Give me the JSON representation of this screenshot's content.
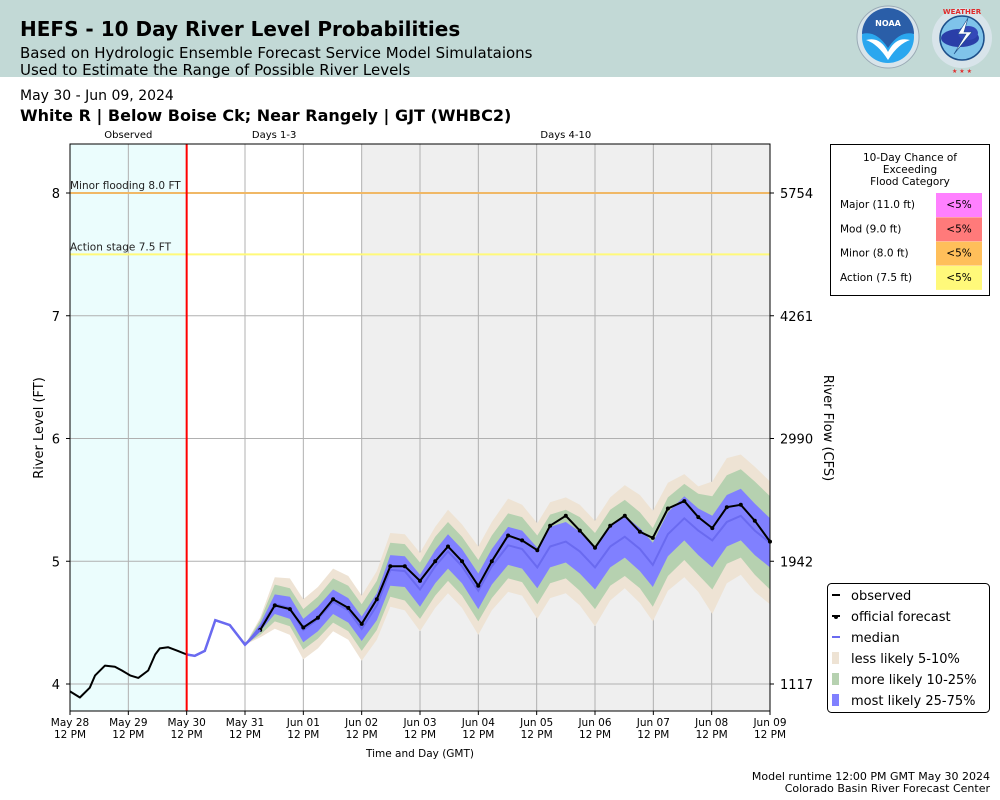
{
  "header": {
    "title": "HEFS - 10 Day River Level Probabilities",
    "subtitle1": "Based on Hydrologic Ensemble Forecast Service Model Simulataions",
    "subtitle2": "Used to Estimate the Range of Possible River Levels",
    "logos": [
      "NOAA",
      "NATIONAL WEATHER SERVICE"
    ]
  },
  "date_range": "May 30 - Jun 09, 2024",
  "station": "White R | Below Boise Ck; Near Rangely | GJT (WHBC2)",
  "footer": {
    "runtime": "Model runtime 12:00 PM GMT May 30 2024",
    "center": "Colorado Basin River Forecast Center"
  },
  "colors": {
    "observed_bg": "#ebfdfd",
    "days410_bg": "#efefef",
    "now_line": "#ff0000",
    "minor_line": "#f0b866",
    "action_line": "#fff97a",
    "less_likely": "#eee3d4",
    "more_likely": "#b6d1b0",
    "most_likely": "#8080ff",
    "median": "#6a6af0",
    "major": "#ff80ff",
    "mod": "#ff7a7a",
    "minor": "#ffbf5a",
    "action": "#fff97a"
  },
  "chart_data": {
    "type": "area",
    "xlabel": "Time and Day (GMT)",
    "ylabel": "River Level (FT)",
    "y2label": "River Flow (CFS)",
    "ylim": [
      3.8,
      8.4
    ],
    "xlim_days": [
      0,
      12
    ],
    "x_ticks": [
      {
        "day": 0,
        "l1": "May 28",
        "l2": "12 PM"
      },
      {
        "day": 1,
        "l1": "May 29",
        "l2": "12 PM"
      },
      {
        "day": 2,
        "l1": "May 30",
        "l2": "12 PM"
      },
      {
        "day": 3,
        "l1": "May 31",
        "l2": "12 PM"
      },
      {
        "day": 4,
        "l1": "Jun 01",
        "l2": "12 PM"
      },
      {
        "day": 5,
        "l1": "Jun 02",
        "l2": "12 PM"
      },
      {
        "day": 6,
        "l1": "Jun 03",
        "l2": "12 PM"
      },
      {
        "day": 7,
        "l1": "Jun 04",
        "l2": "12 PM"
      },
      {
        "day": 8,
        "l1": "Jun 05",
        "l2": "12 PM"
      },
      {
        "day": 9,
        "l1": "Jun 06",
        "l2": "12 PM"
      },
      {
        "day": 10,
        "l1": "Jun 07",
        "l2": "12 PM"
      },
      {
        "day": 11,
        "l1": "Jun 08",
        "l2": "12 PM"
      },
      {
        "day": 12,
        "l1": "Jun 09",
        "l2": "12 PM"
      }
    ],
    "y_ticks": [
      {
        "ft": 4,
        "label": "4",
        "cfs": "1117"
      },
      {
        "ft": 5,
        "label": "5",
        "cfs": "1942"
      },
      {
        "ft": 6,
        "label": "6",
        "cfs": "2990"
      },
      {
        "ft": 7,
        "label": "7",
        "cfs": "4261"
      },
      {
        "ft": 8,
        "label": "8",
        "cfs": "5754"
      }
    ],
    "periods": [
      {
        "label": "Observed",
        "start": 0,
        "end": 2
      },
      {
        "label": "Days 1-3",
        "start": 2,
        "end": 5
      },
      {
        "label": "Days 4-10",
        "start": 5,
        "end": 12
      }
    ],
    "forecast_start_day": 2,
    "thresholds": [
      {
        "label": "Minor flooding 8.0 FT",
        "value": 8.0,
        "color_key": "minor_line"
      },
      {
        "label": "Action stage 7.5 FT",
        "value": 7.5,
        "color_key": "action_line"
      }
    ],
    "observed": {
      "day": [
        0,
        0.17,
        0.34,
        0.43,
        0.6,
        0.77,
        0.89,
        1.03,
        1.17,
        1.34,
        1.46,
        1.54,
        1.68,
        1.85,
        2.0
      ],
      "ft": [
        3.94,
        3.89,
        3.97,
        4.07,
        4.15,
        4.14,
        4.11,
        4.07,
        4.05,
        4.11,
        4.24,
        4.29,
        4.3,
        4.27,
        4.24
      ]
    },
    "official_forecast": {
      "day": [
        2.0,
        2.14,
        2.31,
        2.49,
        2.74,
        3.0,
        3.26,
        3.51,
        3.77,
        4.0,
        4.25,
        4.51,
        4.77,
        5.0,
        5.26,
        5.49,
        5.74,
        6.0,
        6.26,
        6.48,
        6.72,
        7.0,
        7.23,
        7.51,
        7.75,
        8.01,
        8.23,
        8.5,
        8.74,
        9.0,
        9.26,
        9.51,
        9.77,
        9.99,
        10.25,
        10.53,
        10.77,
        11.01,
        11.26,
        11.5,
        11.74,
        12.0
      ],
      "ft": [
        4.24,
        4.23,
        4.27,
        4.52,
        4.48,
        4.32,
        4.44,
        4.64,
        4.61,
        4.46,
        4.54,
        4.69,
        4.62,
        4.49,
        4.69,
        4.96,
        4.96,
        4.84,
        5.0,
        5.12,
        5.0,
        4.8,
        5.0,
        5.21,
        5.17,
        5.09,
        5.29,
        5.37,
        5.25,
        5.11,
        5.29,
        5.37,
        5.24,
        5.19,
        5.43,
        5.49,
        5.36,
        5.27,
        5.44,
        5.46,
        5.33,
        5.16
      ]
    },
    "median": {
      "day": [
        2.0,
        2.14,
        2.31,
        2.49,
        2.74,
        3.0,
        3.26,
        3.51,
        3.77,
        4.0,
        4.25,
        4.51,
        4.77,
        5.0,
        5.26,
        5.49,
        5.74,
        6.0,
        6.26,
        6.48,
        6.72,
        7.0,
        7.23,
        7.51,
        7.75,
        8.01,
        8.23,
        8.5,
        8.74,
        9.0,
        9.26,
        9.51,
        9.77,
        9.99,
        10.25,
        10.53,
        10.77,
        11.01,
        11.26,
        11.5,
        11.74,
        12.0
      ],
      "ft": [
        4.24,
        4.23,
        4.27,
        4.52,
        4.48,
        4.32,
        4.46,
        4.65,
        4.62,
        4.44,
        4.53,
        4.67,
        4.6,
        4.45,
        4.64,
        4.93,
        4.92,
        4.77,
        4.96,
        5.08,
        4.96,
        4.76,
        4.96,
        5.13,
        5.1,
        4.95,
        5.12,
        5.16,
        5.08,
        4.95,
        5.12,
        5.2,
        5.1,
        4.97,
        5.22,
        5.35,
        5.25,
        5.17,
        5.32,
        5.37,
        5.25,
        5.15
      ]
    },
    "bands": [
      {
        "name": "less likely 5-10%",
        "lower_off": [
          0,
          0,
          0,
          0,
          0,
          0,
          0.08,
          0.2,
          0.22,
          0.24,
          0.24,
          0.24,
          0.24,
          0.26,
          0.28,
          0.3,
          0.32,
          0.34,
          0.34,
          0.34,
          0.34,
          0.36,
          0.36,
          0.38,
          0.38,
          0.42,
          0.42,
          0.42,
          0.44,
          0.48,
          0.44,
          0.42,
          0.44,
          0.46,
          0.46,
          0.48,
          0.5,
          0.6,
          0.5,
          0.48,
          0.5,
          0.5
        ],
        "upper_off": [
          0,
          0,
          0,
          0,
          0,
          0,
          0.08,
          0.22,
          0.24,
          0.25,
          0.26,
          0.27,
          0.28,
          0.27,
          0.28,
          0.3,
          0.3,
          0.3,
          0.32,
          0.34,
          0.34,
          0.36,
          0.36,
          0.38,
          0.36,
          0.36,
          0.36,
          0.36,
          0.38,
          0.38,
          0.4,
          0.42,
          0.44,
          0.44,
          0.42,
          0.36,
          0.36,
          0.48,
          0.52,
          0.5,
          0.52,
          0.5
        ]
      },
      {
        "name": "more likely 10-25%",
        "lower_off": [
          0,
          0,
          0,
          0,
          0,
          0,
          0.06,
          0.14,
          0.15,
          0.16,
          0.16,
          0.17,
          0.17,
          0.18,
          0.2,
          0.22,
          0.24,
          0.24,
          0.24,
          0.24,
          0.24,
          0.25,
          0.26,
          0.27,
          0.27,
          0.3,
          0.3,
          0.3,
          0.32,
          0.34,
          0.32,
          0.32,
          0.32,
          0.34,
          0.34,
          0.34,
          0.36,
          0.4,
          0.34,
          0.34,
          0.36,
          0.38
        ],
        "upper_off": [
          0,
          0,
          0,
          0,
          0,
          0,
          0.06,
          0.16,
          0.16,
          0.17,
          0.18,
          0.19,
          0.2,
          0.2,
          0.2,
          0.22,
          0.22,
          0.22,
          0.24,
          0.24,
          0.24,
          0.25,
          0.25,
          0.26,
          0.26,
          0.26,
          0.26,
          0.26,
          0.28,
          0.28,
          0.3,
          0.3,
          0.3,
          0.3,
          0.3,
          0.28,
          0.3,
          0.36,
          0.38,
          0.38,
          0.4,
          0.38
        ]
      },
      {
        "name": "most likely 25-75%",
        "lower_off": [
          0,
          0,
          0,
          0,
          0,
          0,
          0.03,
          0.08,
          0.09,
          0.1,
          0.1,
          0.1,
          0.1,
          0.1,
          0.12,
          0.13,
          0.13,
          0.14,
          0.14,
          0.14,
          0.14,
          0.15,
          0.15,
          0.16,
          0.16,
          0.17,
          0.17,
          0.17,
          0.18,
          0.18,
          0.17,
          0.17,
          0.18,
          0.18,
          0.18,
          0.18,
          0.2,
          0.22,
          0.2,
          0.2,
          0.2,
          0.2
        ],
        "upper_off": [
          0,
          0,
          0,
          0,
          0,
          0,
          0.03,
          0.08,
          0.09,
          0.09,
          0.1,
          0.1,
          0.1,
          0.1,
          0.1,
          0.12,
          0.12,
          0.12,
          0.13,
          0.14,
          0.14,
          0.14,
          0.14,
          0.15,
          0.15,
          0.16,
          0.16,
          0.16,
          0.16,
          0.16,
          0.17,
          0.17,
          0.17,
          0.18,
          0.18,
          0.18,
          0.18,
          0.2,
          0.22,
          0.22,
          0.22,
          0.2
        ]
      }
    ],
    "legend": [
      {
        "label": "observed",
        "type": "line",
        "color": "#000000"
      },
      {
        "label": "official forecast",
        "type": "marker-line",
        "color": "#000000"
      },
      {
        "label": "median",
        "type": "line",
        "color": "#6a6af0"
      },
      {
        "label": "less likely 5-10%",
        "type": "patch",
        "color": "#eee3d4"
      },
      {
        "label": "more likely 10-25%",
        "type": "patch",
        "color": "#b6d1b0"
      },
      {
        "label": "most likely 25-75%",
        "type": "patch",
        "color": "#8080ff"
      }
    ],
    "legend_position": "lower-right",
    "flood_table": {
      "title": [
        "10-Day Chance of",
        "Exceeding",
        "Flood Category"
      ],
      "rows": [
        {
          "category": "Major (11.0 ft)",
          "chance": "<5%",
          "color_key": "major"
        },
        {
          "category": "Mod (9.0 ft)",
          "chance": "<5%",
          "color_key": "mod"
        },
        {
          "category": "Minor (8.0 ft)",
          "chance": "<5%",
          "color_key": "minor"
        },
        {
          "category": "Action (7.5 ft)",
          "chance": "<5%",
          "color_key": "action"
        }
      ]
    }
  }
}
